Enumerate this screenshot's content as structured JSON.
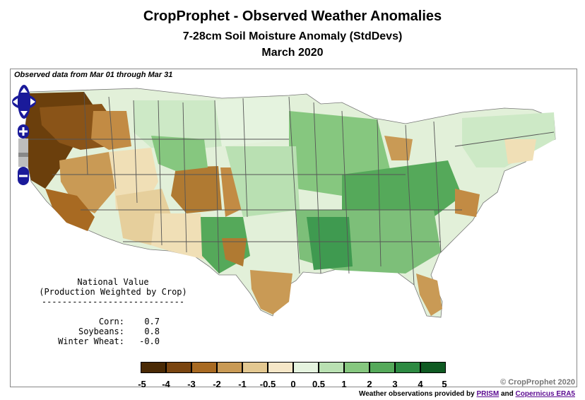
{
  "header": {
    "title": "CropProphet - Observed Weather Anomalies",
    "subtitle": "7-28cm Soil Moisture Anomaly (StdDevs)",
    "period": "March 2020"
  },
  "map": {
    "observed_note": "Observed data from Mar 01 through Mar 31"
  },
  "national": {
    "heading": "National Value",
    "subheading": "(Production Weighted by Crop)",
    "divider": "----------------------------",
    "rows": [
      {
        "crop": "Corn:",
        "value": "0.7"
      },
      {
        "crop": "Soybeans:",
        "value": "0.8"
      },
      {
        "crop": "Winter Wheat:",
        "value": "-0.0"
      }
    ]
  },
  "legend": {
    "ticks": [
      "-5",
      "-4",
      "-3",
      "-2",
      "-1",
      "-0.5",
      "0",
      "0.5",
      "1",
      "2",
      "3",
      "4",
      "5"
    ],
    "colors": [
      "#4a2a05",
      "#7a4510",
      "#a86a22",
      "#c99a55",
      "#e3c891",
      "#f5e6c7",
      "#e5f3df",
      "#b9e0b2",
      "#86c77f",
      "#55a95a",
      "#2d8a42",
      "#0f5a22"
    ]
  },
  "footer": {
    "copyright": "© CropProphet 2020",
    "credit_prefix": "Weather observations provided by",
    "credit_prism": "PRISM",
    "credit_and": "and",
    "credit_era5": "Copernicus ERA5"
  },
  "colors": {
    "dry_strong": "#6b3f0c",
    "dry": "#b07a32",
    "dry_light": "#e6cf9c",
    "neutral": "#f3ead0",
    "wet_light": "#cde9c6",
    "wet": "#7dbf79",
    "wet_strong": "#3f9a50",
    "nav_blue": "#1a1a9a"
  }
}
